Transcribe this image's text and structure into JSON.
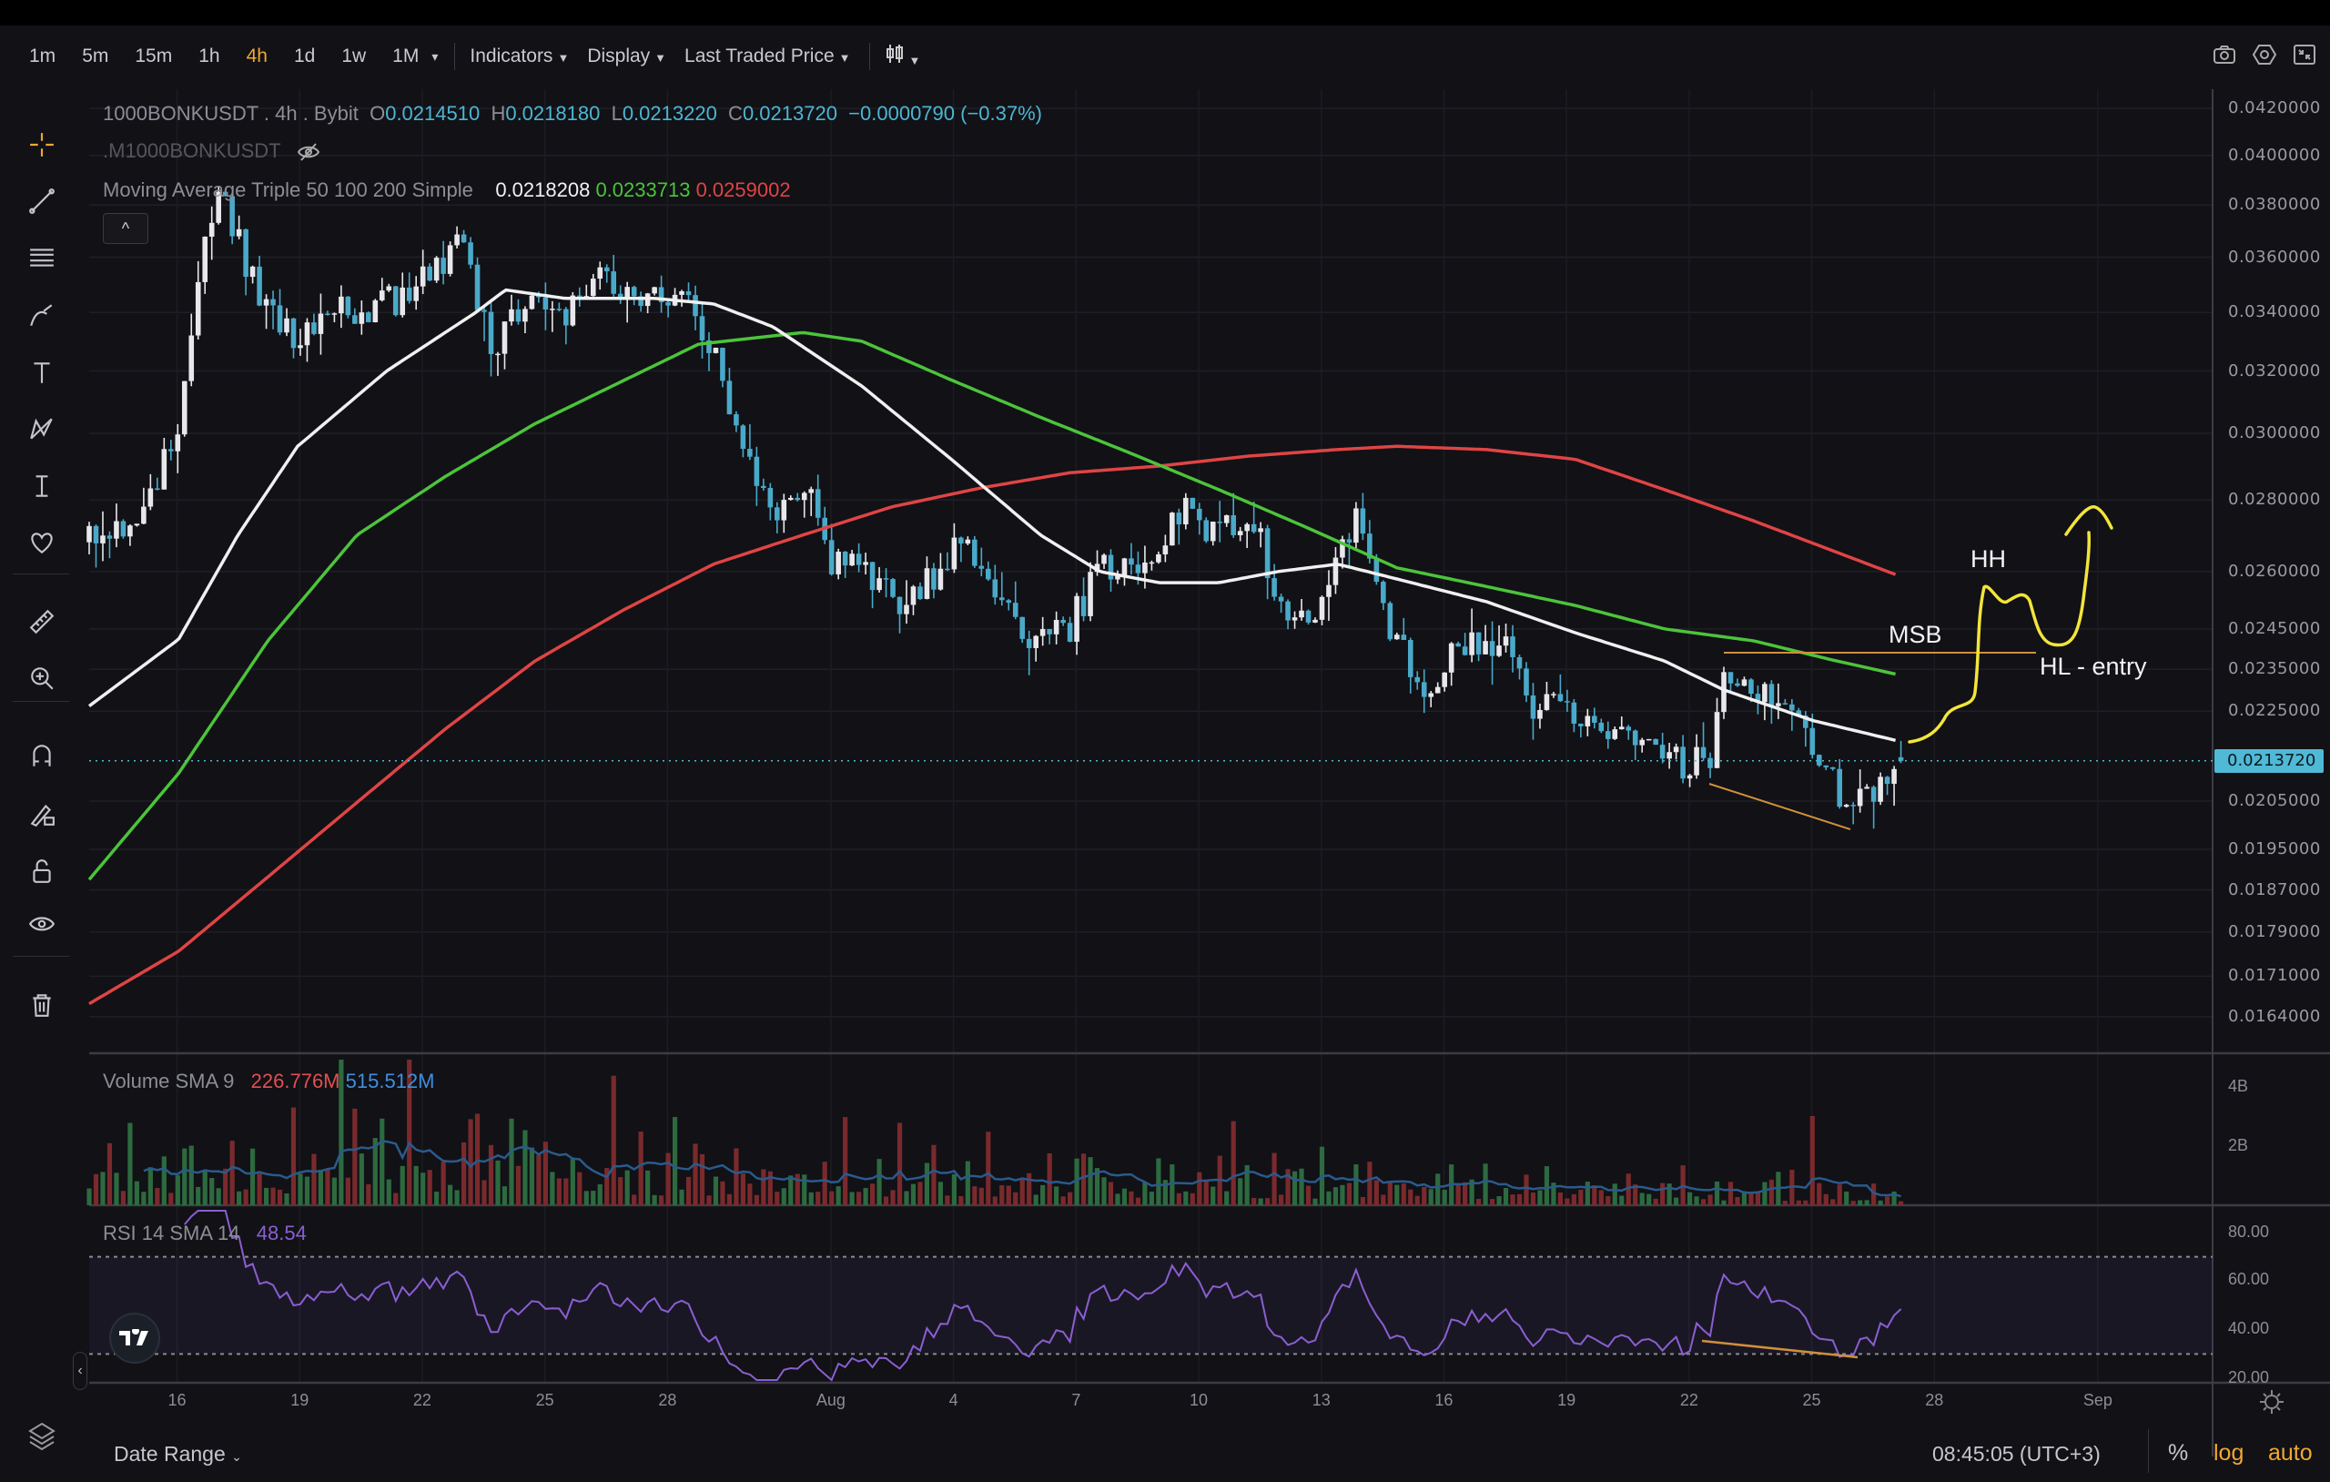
{
  "toolbar": {
    "timeframes": [
      "1m",
      "5m",
      "15m",
      "1h",
      "4h",
      "1d",
      "1w",
      "1M"
    ],
    "active": "4h",
    "more": "▾",
    "indicators": "Indicators",
    "display": "Display",
    "price_source": "Last Traded Price"
  },
  "legend": {
    "symbol": "1000BONKUSDT . 4h . Bybit",
    "o_label": "O",
    "o": "0.0214510",
    "h_label": "H",
    "h": "0.0218180",
    "l_label": "L",
    "l": "0.0213220",
    "c_label": "C",
    "c": "0.0213720",
    "change": "−0.0000790 (−0.37%)",
    "mark_symbol": ".M1000BONKUSDT",
    "ma_name": "Moving Average Triple 50 100 200 Simple",
    "ma50": "0.0218208",
    "ma100": "0.0233713",
    "ma200": "0.0259002",
    "collapse": "^"
  },
  "price_axis": [
    "0.0420000",
    "0.0400000",
    "0.0380000",
    "0.0360000",
    "0.0340000",
    "0.0320000",
    "0.0300000",
    "0.0280000",
    "0.0260000",
    "0.0245000",
    "0.0235000",
    "0.0225000",
    "0.0205000",
    "0.0195000",
    "0.0187000",
    "0.0179000",
    "0.0171000",
    "0.0164000"
  ],
  "last_price_label": "0.0213720",
  "volume": {
    "name": "Volume SMA 9",
    "v1": "226.776M",
    "v2": "515.512M",
    "axis": [
      "4B",
      "2B"
    ]
  },
  "rsi": {
    "name": "RSI 14 SMA 14",
    "value": "48.54",
    "axis": [
      "80.00",
      "60.00",
      "40.00",
      "20.00"
    ]
  },
  "date_axis": [
    {
      "label": "16",
      "t": 0
    },
    {
      "label": "19",
      "t": 3
    },
    {
      "label": "22",
      "t": 6
    },
    {
      "label": "25",
      "t": 9
    },
    {
      "label": "28",
      "t": 12
    },
    {
      "label": "Aug",
      "t": 16
    },
    {
      "label": "4",
      "t": 19
    },
    {
      "label": "7",
      "t": 22
    },
    {
      "label": "10",
      "t": 25
    },
    {
      "label": "13",
      "t": 28
    },
    {
      "label": "16",
      "t": 31
    },
    {
      "label": "19",
      "t": 34
    },
    {
      "label": "22",
      "t": 37
    },
    {
      "label": "25",
      "t": 40
    },
    {
      "label": "28",
      "t": 43
    },
    {
      "label": "Sep",
      "t": 47
    }
  ],
  "annotations": {
    "hh": "HH",
    "msb": "MSB",
    "hl": "HL - entry"
  },
  "bottom": {
    "date_range": "Date Range",
    "time": "08:45:05 (UTC+3)",
    "percent": "%",
    "log": "log",
    "auto": "auto"
  },
  "colors": {
    "up": "#e8e8ec",
    "down": "#4aa9c9",
    "ma50": "#f0f0f0",
    "ma100": "#4cc43a",
    "ma200": "#e04444",
    "drawing": "#f3e53a",
    "trendline": "#d0903a",
    "rsi": "#8a5fd0",
    "accent": "#f0a830"
  },
  "chart_data": {
    "type": "candlestick",
    "x_unit": "days since Jul 16",
    "path": [
      [
        -2.15,
        0.0268
      ],
      [
        -0.69,
        0.0278
      ],
      [
        0.04,
        0.0305
      ],
      [
        0.51,
        0.0353
      ],
      [
        1.05,
        0.0382
      ],
      [
        1.67,
        0.0359
      ],
      [
        2.58,
        0.0332
      ],
      [
        4.04,
        0.034
      ],
      [
        5.49,
        0.0345
      ],
      [
        6.95,
        0.0365
      ],
      [
        7.67,
        0.0327
      ],
      [
        8.58,
        0.0348
      ],
      [
        9.49,
        0.0337
      ],
      [
        10.22,
        0.0356
      ],
      [
        11.31,
        0.0345
      ],
      [
        12.4,
        0.0345
      ],
      [
        13.13,
        0.0325
      ],
      [
        13.85,
        0.0292
      ],
      [
        14.58,
        0.0274
      ],
      [
        15.31,
        0.0287
      ],
      [
        16.04,
        0.0262
      ],
      [
        16.76,
        0.026
      ],
      [
        17.85,
        0.025
      ],
      [
        18.95,
        0.0266
      ],
      [
        19.67,
        0.0264
      ],
      [
        20.76,
        0.0243
      ],
      [
        21.85,
        0.0246
      ],
      [
        22.58,
        0.026
      ],
      [
        23.67,
        0.0264
      ],
      [
        24.76,
        0.0277
      ],
      [
        25.49,
        0.027
      ],
      [
        26.22,
        0.0277
      ],
      [
        26.95,
        0.0254
      ],
      [
        27.67,
        0.0244
      ],
      [
        28.4,
        0.0266
      ],
      [
        28.95,
        0.0277
      ],
      [
        29.67,
        0.0243
      ],
      [
        30.58,
        0.0231
      ],
      [
        31.31,
        0.0239
      ],
      [
        32.58,
        0.0243
      ],
      [
        33.13,
        0.0226
      ],
      [
        33.85,
        0.0228
      ],
      [
        34.95,
        0.0216
      ],
      [
        35.67,
        0.0221
      ],
      [
        36.76,
        0.0213
      ],
      [
        37.49,
        0.0214
      ],
      [
        37.85,
        0.0237
      ],
      [
        38.58,
        0.023
      ],
      [
        39.31,
        0.0228
      ],
      [
        39.85,
        0.0221
      ],
      [
        40.4,
        0.0211
      ],
      [
        40.95,
        0.0202
      ],
      [
        41.56,
        0.0208
      ],
      [
        42.1,
        0.02137
      ]
    ],
    "ma50": [
      [
        -2.15,
        0.02262
      ],
      [
        0.04,
        0.02424
      ],
      [
        1.49,
        0.027
      ],
      [
        2.95,
        0.0296
      ],
      [
        5.13,
        0.032
      ],
      [
        7.31,
        0.034
      ],
      [
        8.04,
        0.0348
      ],
      [
        9.49,
        0.0345
      ],
      [
        11.67,
        0.0345
      ],
      [
        13.13,
        0.0343
      ],
      [
        14.58,
        0.0335
      ],
      [
        16.76,
        0.0315
      ],
      [
        18.95,
        0.0292
      ],
      [
        21.13,
        0.027
      ],
      [
        22.58,
        0.026
      ],
      [
        24.04,
        0.0257
      ],
      [
        25.49,
        0.0257
      ],
      [
        26.95,
        0.026
      ],
      [
        28.4,
        0.0262
      ],
      [
        29.85,
        0.0258
      ],
      [
        32.04,
        0.0252
      ],
      [
        34.22,
        0.0244
      ],
      [
        36.4,
        0.0237
      ],
      [
        37.85,
        0.023
      ],
      [
        40.04,
        0.02228
      ],
      [
        42.1,
        0.02182
      ]
    ],
    "ma100": [
      [
        -2.15,
        0.0189
      ],
      [
        0.04,
        0.0211
      ],
      [
        2.22,
        0.0242
      ],
      [
        4.4,
        0.027
      ],
      [
        6.58,
        0.0287
      ],
      [
        8.76,
        0.0303
      ],
      [
        10.95,
        0.0317
      ],
      [
        12.76,
        0.0329
      ],
      [
        15.31,
        0.0333
      ],
      [
        16.76,
        0.033
      ],
      [
        18.95,
        0.0317
      ],
      [
        21.13,
        0.0305
      ],
      [
        23.31,
        0.0294
      ],
      [
        25.49,
        0.0283
      ],
      [
        27.67,
        0.0272
      ],
      [
        29.85,
        0.0261
      ],
      [
        32.04,
        0.0256
      ],
      [
        34.22,
        0.0251
      ],
      [
        36.4,
        0.0245
      ],
      [
        38.58,
        0.0242
      ],
      [
        40.4,
        0.02375
      ],
      [
        42.1,
        0.02337
      ]
    ],
    "ma200": [
      [
        -2.15,
        0.01662
      ],
      [
        0.04,
        0.01755
      ],
      [
        2.22,
        0.01895
      ],
      [
        4.4,
        0.02047
      ],
      [
        6.58,
        0.0221
      ],
      [
        8.76,
        0.0237
      ],
      [
        10.95,
        0.025
      ],
      [
        13.13,
        0.0262
      ],
      [
        15.31,
        0.027
      ],
      [
        17.49,
        0.0278
      ],
      [
        19.67,
        0.02835
      ],
      [
        21.85,
        0.0288
      ],
      [
        24.04,
        0.029
      ],
      [
        26.22,
        0.0293
      ],
      [
        28.4,
        0.0295
      ],
      [
        29.85,
        0.0296
      ],
      [
        32.04,
        0.0295
      ],
      [
        34.22,
        0.0292
      ],
      [
        36.4,
        0.0283
      ],
      [
        38.58,
        0.0274
      ],
      [
        42.1,
        0.0259
      ]
    ],
    "last_candle": {
      "o": 0.021451,
      "h": 0.021818,
      "l": 0.021322,
      "c": 0.021372
    },
    "price_scale": "log",
    "ylim": [
      0.0164,
      0.042
    ]
  }
}
